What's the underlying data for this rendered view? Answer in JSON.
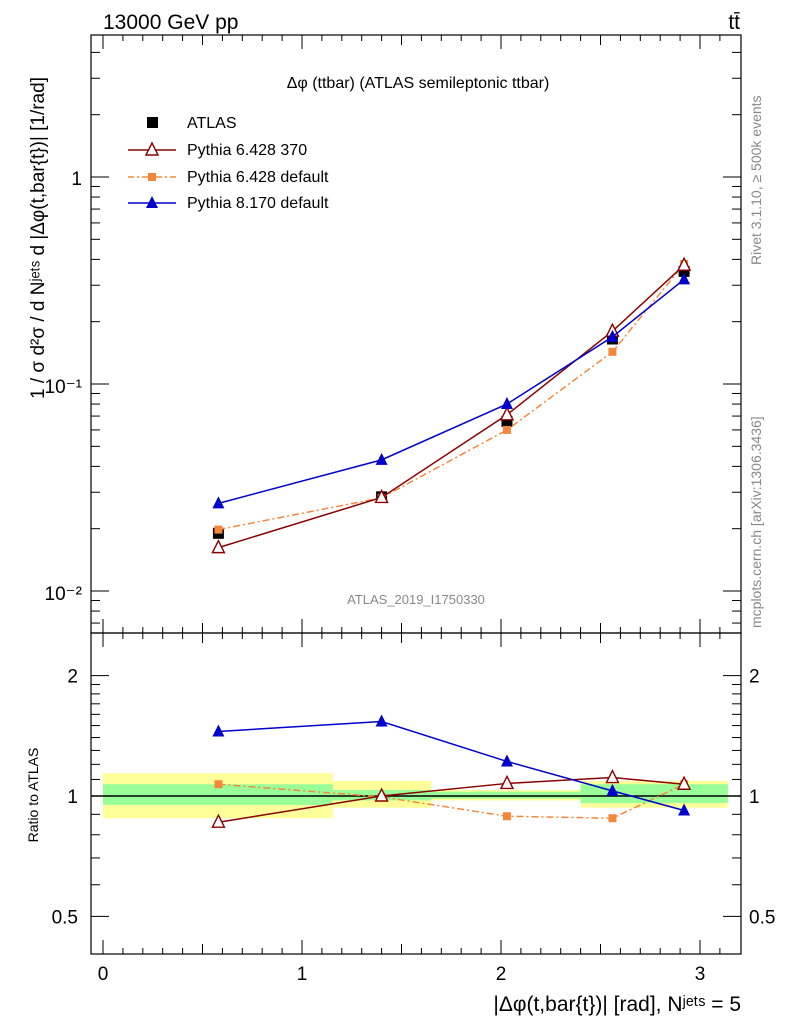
{
  "header": {
    "energy_label": "13000 GeV pp",
    "process_label": "tt̄",
    "title": "Δφ (ttbar) (ATLAS semileptonic ttbar)",
    "analysis_label": "ATLAS_2019_I1750330",
    "side_rivet": "Rivet 3.1.10, ≥ 500k events",
    "side_mcplots": "mcplots.cern.ch [arXiv:1306.3436]"
  },
  "axes": {
    "main_ylabel": "1 / σ d²σ / d Nʲᵉᵗˢ d |Δφ(t,bar{t})| [1/rad]",
    "ratio_ylabel": "Ratio to ATLAS",
    "xlabel": "|Δφ(t,bar{t})| [rad], Nʲᵉᵗˢ = 5"
  },
  "legend": [
    {
      "key": "atlas",
      "label": "ATLAS"
    },
    {
      "key": "p6_370",
      "label": "Pythia 6.428 370"
    },
    {
      "key": "p6_def",
      "label": "Pythia 6.428 default"
    },
    {
      "key": "p8_def",
      "label": "Pythia 8.170 default"
    }
  ],
  "chart_data": [
    {
      "type": "scatter",
      "panel": "main",
      "yscale": "log",
      "xlim": [
        -0.1,
        3.2
      ],
      "ylim": [
        0.006,
        5
      ],
      "x_ticks": [
        "0",
        "1",
        "2",
        "3"
      ],
      "y_tick_labels": [
        "10⁻²",
        "10⁻¹",
        "1"
      ],
      "x": [
        0.58,
        1.4,
        2.03,
        2.56,
        2.92
      ],
      "series": [
        {
          "name": "ATLAS",
          "color": "#000000",
          "marker": "square",
          "values": [
            0.019,
            0.0285,
            0.066,
            0.165,
            0.35
          ]
        },
        {
          "name": "Pythia 6.428 370",
          "color": "#8b0000",
          "marker": "open-triangle",
          "values": [
            0.0162,
            0.0283,
            0.071,
            0.18,
            0.375
          ]
        },
        {
          "name": "Pythia 6.428 default",
          "color": "#f5873c",
          "marker": "square-small",
          "dash": "dash-dot",
          "values": [
            0.0198,
            0.0282,
            0.06,
            0.143,
            0.38
          ]
        },
        {
          "name": "Pythia 8.170 default",
          "color": "#0000cc",
          "marker": "triangle",
          "values": [
            0.0265,
            0.043,
            0.08,
            0.169,
            0.32
          ]
        }
      ]
    },
    {
      "type": "line",
      "panel": "ratio",
      "yscale": "log",
      "ylim": [
        0.4,
        2.5
      ],
      "y_tick_labels": [
        "0.5",
        "1",
        "2"
      ],
      "x": [
        0.58,
        1.4,
        2.03,
        2.56,
        2.92
      ],
      "bins": [
        {
          "lo": 0.0,
          "hi": 1.155,
          "stat": [
            0.95,
            1.07
          ],
          "total": [
            0.88,
            1.14
          ]
        },
        {
          "lo": 1.155,
          "hi": 1.65,
          "stat": [
            0.975,
            1.035
          ],
          "total": [
            0.935,
            1.09
          ]
        },
        {
          "lo": 1.65,
          "hi": 2.4,
          "stat": [
            0.985,
            1.025
          ],
          "total": [
            0.975,
            1.035
          ]
        },
        {
          "lo": 2.4,
          "hi": 3.14,
          "stat": [
            0.96,
            1.07
          ],
          "total": [
            0.935,
            1.09
          ]
        }
      ],
      "series": [
        {
          "name": "Pythia 6.428 370",
          "values": [
            0.86,
            1.0,
            1.075,
            1.112,
            1.07
          ]
        },
        {
          "name": "Pythia 6.428 default",
          "values": [
            1.07,
            0.995,
            0.89,
            0.88,
            1.07
          ]
        },
        {
          "name": "Pythia 8.170 default",
          "values": [
            1.45,
            1.535,
            1.22,
            1.03,
            0.92
          ]
        }
      ]
    }
  ]
}
